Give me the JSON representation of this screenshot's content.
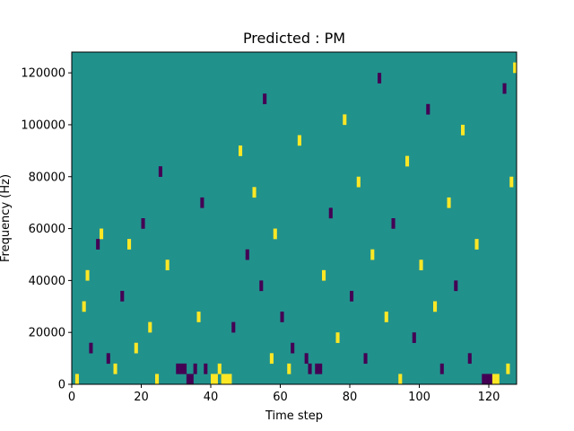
{
  "chart_data": {
    "type": "heatmap",
    "title": "Predicted : PM",
    "xlabel": "Time step",
    "ylabel": "Frequency (Hz)",
    "xlim": [
      0,
      128
    ],
    "ylim": [
      0,
      128000
    ],
    "x_ticks": [
      0,
      20,
      40,
      60,
      80,
      100,
      120
    ],
    "x_tick_labels": [
      "0",
      "20",
      "40",
      "60",
      "80",
      "100",
      "120"
    ],
    "y_ticks": [
      0,
      20000,
      40000,
      60000,
      80000,
      100000,
      120000
    ],
    "y_tick_labels": [
      "0",
      "20000",
      "40000",
      "60000",
      "80000",
      "100000",
      "120000"
    ],
    "grid": false,
    "colormap": "viridis",
    "colors": {
      "background": "#21918c",
      "low": "#440154",
      "high": "#fde725"
    },
    "rows": 32,
    "cols": 128,
    "background_value": 0,
    "cells": [
      {
        "t": 1,
        "f_bin": 0,
        "v": 1
      },
      {
        "t": 3,
        "f_bin": 7,
        "v": 1
      },
      {
        "t": 4,
        "f_bin": 10,
        "v": 1
      },
      {
        "t": 5,
        "f_bin": 3,
        "v": -1
      },
      {
        "t": 7,
        "f_bin": 13,
        "v": -1
      },
      {
        "t": 8,
        "f_bin": 14,
        "v": 1
      },
      {
        "t": 10,
        "f_bin": 2,
        "v": -1
      },
      {
        "t": 12,
        "f_bin": 1,
        "v": 1
      },
      {
        "t": 14,
        "f_bin": 8,
        "v": -1
      },
      {
        "t": 16,
        "f_bin": 13,
        "v": 1
      },
      {
        "t": 18,
        "f_bin": 3,
        "v": 1
      },
      {
        "t": 20,
        "f_bin": 15,
        "v": -1
      },
      {
        "t": 22,
        "f_bin": 5,
        "v": 1
      },
      {
        "t": 24,
        "f_bin": 0,
        "v": 1
      },
      {
        "t": 25,
        "f_bin": 20,
        "v": -1
      },
      {
        "t": 27,
        "f_bin": 11,
        "v": 1
      },
      {
        "t": 30,
        "f_bin": 1,
        "v": -1
      },
      {
        "t": 31,
        "f_bin": 1,
        "v": -1
      },
      {
        "t": 32,
        "f_bin": 1,
        "v": -1
      },
      {
        "t": 33,
        "f_bin": 0,
        "v": -1
      },
      {
        "t": 34,
        "f_bin": 0,
        "v": -1
      },
      {
        "t": 35,
        "f_bin": 1,
        "v": -1
      },
      {
        "t": 36,
        "f_bin": 6,
        "v": 1
      },
      {
        "t": 37,
        "f_bin": 17,
        "v": -1
      },
      {
        "t": 38,
        "f_bin": 1,
        "v": -1
      },
      {
        "t": 40,
        "f_bin": 0,
        "v": 1
      },
      {
        "t": 41,
        "f_bin": 0,
        "v": 1
      },
      {
        "t": 42,
        "f_bin": 1,
        "v": 1
      },
      {
        "t": 43,
        "f_bin": 0,
        "v": 1
      },
      {
        "t": 44,
        "f_bin": 0,
        "v": 1
      },
      {
        "t": 45,
        "f_bin": 0,
        "v": 1
      },
      {
        "t": 46,
        "f_bin": 5,
        "v": -1
      },
      {
        "t": 48,
        "f_bin": 22,
        "v": 1
      },
      {
        "t": 50,
        "f_bin": 12,
        "v": -1
      },
      {
        "t": 52,
        "f_bin": 18,
        "v": 1
      },
      {
        "t": 54,
        "f_bin": 9,
        "v": -1
      },
      {
        "t": 55,
        "f_bin": 27,
        "v": -1
      },
      {
        "t": 57,
        "f_bin": 2,
        "v": 1
      },
      {
        "t": 58,
        "f_bin": 14,
        "v": 1
      },
      {
        "t": 60,
        "f_bin": 6,
        "v": -1
      },
      {
        "t": 62,
        "f_bin": 1,
        "v": 1
      },
      {
        "t": 63,
        "f_bin": 3,
        "v": -1
      },
      {
        "t": 65,
        "f_bin": 23,
        "v": 1
      },
      {
        "t": 67,
        "f_bin": 2,
        "v": -1
      },
      {
        "t": 68,
        "f_bin": 1,
        "v": -1
      },
      {
        "t": 70,
        "f_bin": 1,
        "v": -1
      },
      {
        "t": 71,
        "f_bin": 1,
        "v": -1
      },
      {
        "t": 72,
        "f_bin": 10,
        "v": 1
      },
      {
        "t": 74,
        "f_bin": 16,
        "v": -1
      },
      {
        "t": 76,
        "f_bin": 4,
        "v": 1
      },
      {
        "t": 78,
        "f_bin": 25,
        "v": 1
      },
      {
        "t": 80,
        "f_bin": 8,
        "v": -1
      },
      {
        "t": 82,
        "f_bin": 19,
        "v": 1
      },
      {
        "t": 84,
        "f_bin": 2,
        "v": -1
      },
      {
        "t": 86,
        "f_bin": 12,
        "v": 1
      },
      {
        "t": 88,
        "f_bin": 29,
        "v": -1
      },
      {
        "t": 90,
        "f_bin": 6,
        "v": 1
      },
      {
        "t": 92,
        "f_bin": 15,
        "v": -1
      },
      {
        "t": 94,
        "f_bin": 0,
        "v": 1
      },
      {
        "t": 96,
        "f_bin": 21,
        "v": 1
      },
      {
        "t": 98,
        "f_bin": 4,
        "v": -1
      },
      {
        "t": 100,
        "f_bin": 11,
        "v": 1
      },
      {
        "t": 102,
        "f_bin": 26,
        "v": -1
      },
      {
        "t": 104,
        "f_bin": 7,
        "v": 1
      },
      {
        "t": 106,
        "f_bin": 1,
        "v": -1
      },
      {
        "t": 108,
        "f_bin": 17,
        "v": 1
      },
      {
        "t": 110,
        "f_bin": 9,
        "v": -1
      },
      {
        "t": 112,
        "f_bin": 24,
        "v": 1
      },
      {
        "t": 114,
        "f_bin": 2,
        "v": -1
      },
      {
        "t": 116,
        "f_bin": 13,
        "v": 1
      },
      {
        "t": 118,
        "f_bin": 0,
        "v": -1
      },
      {
        "t": 119,
        "f_bin": 0,
        "v": -1
      },
      {
        "t": 120,
        "f_bin": 0,
        "v": -1
      },
      {
        "t": 121,
        "f_bin": 0,
        "v": 1
      },
      {
        "t": 122,
        "f_bin": 0,
        "v": 1
      },
      {
        "t": 124,
        "f_bin": 28,
        "v": -1
      },
      {
        "t": 125,
        "f_bin": 1,
        "v": 1
      },
      {
        "t": 126,
        "f_bin": 19,
        "v": 1
      },
      {
        "t": 127,
        "f_bin": 30,
        "v": 1
      }
    ]
  }
}
